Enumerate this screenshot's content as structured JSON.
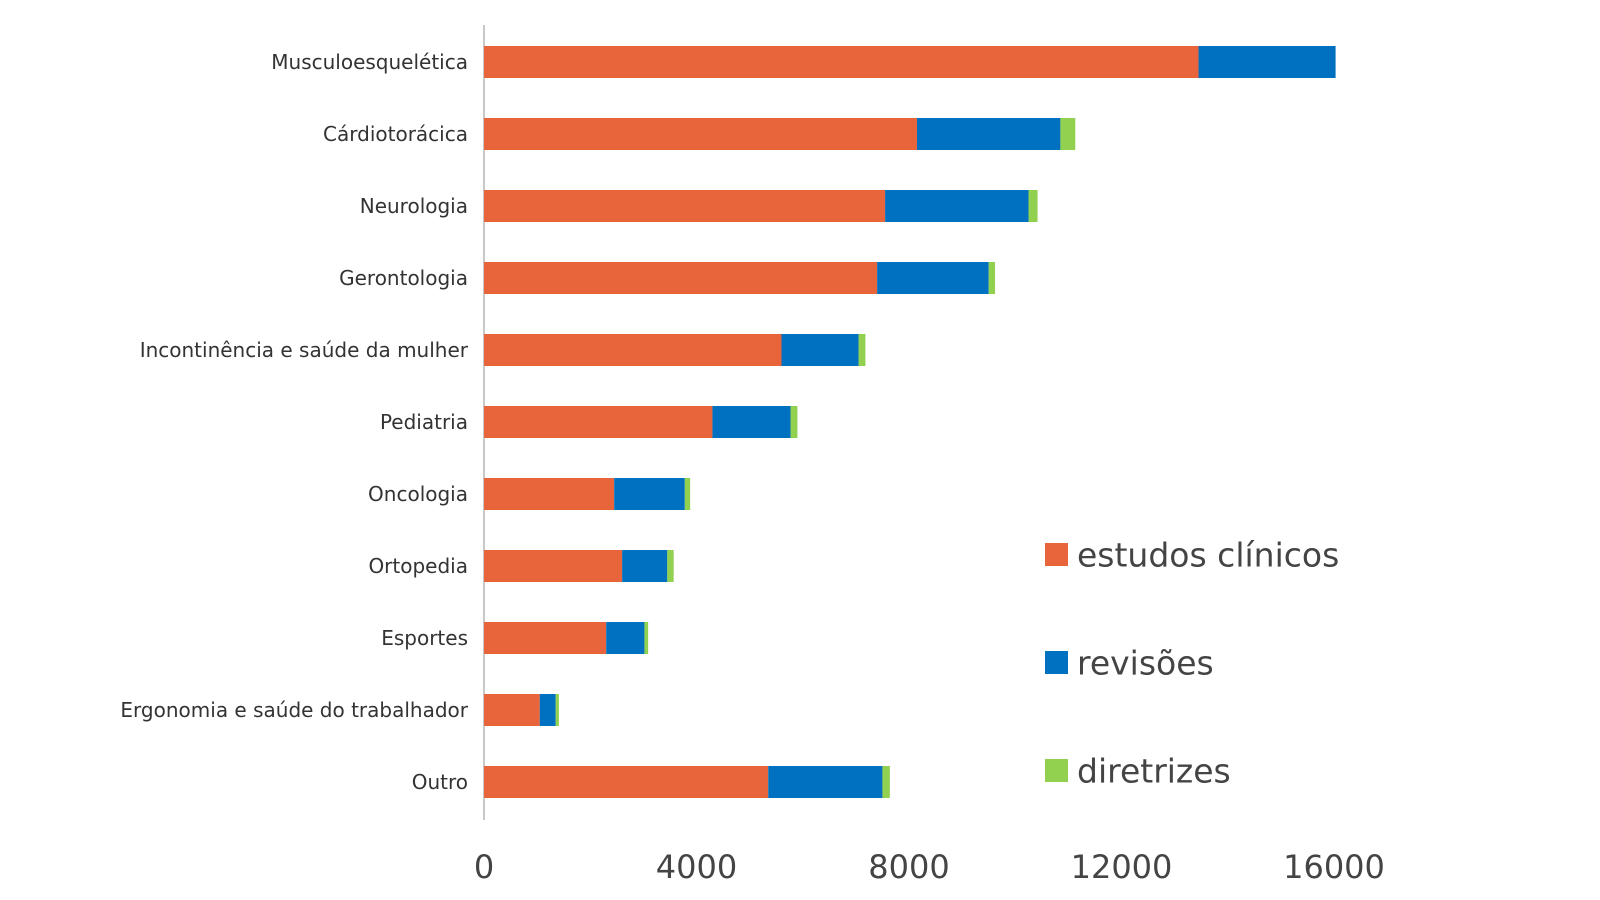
{
  "chart_data": {
    "type": "bar",
    "orientation": "horizontal",
    "stacked": true,
    "categories": [
      "Musculoesquelética",
      "Cárdiotorácica",
      "Neurologia",
      "Gerontologia",
      "Incontinência e saúde da mulher",
      "Pediatria",
      "Oncologia",
      "Ortopedia",
      "Esportes",
      "Ergonomia e saúde do trabalhador",
      "Outro"
    ],
    "series": [
      {
        "name": "estudos clínicos",
        "color": "#E8643A",
        "values": [
          13450,
          8150,
          7550,
          7400,
          5600,
          4300,
          2450,
          2600,
          2300,
          1050,
          5350
        ]
      },
      {
        "name": "revisões",
        "color": "#0070C0",
        "values": [
          2580,
          2700,
          2700,
          2100,
          1450,
          1470,
          1330,
          850,
          720,
          300,
          2150
        ]
      },
      {
        "name": "diretrizes",
        "color": "#92D050",
        "values": [
          0,
          280,
          170,
          120,
          130,
          130,
          100,
          120,
          70,
          60,
          140
        ]
      }
    ],
    "xlim": [
      0,
      16000
    ],
    "xticks": [
      "0",
      "4000",
      "8000",
      "12000",
      "16000"
    ],
    "xlabel": "",
    "ylabel": "",
    "title": "",
    "grid": false,
    "legend_position": "right"
  }
}
